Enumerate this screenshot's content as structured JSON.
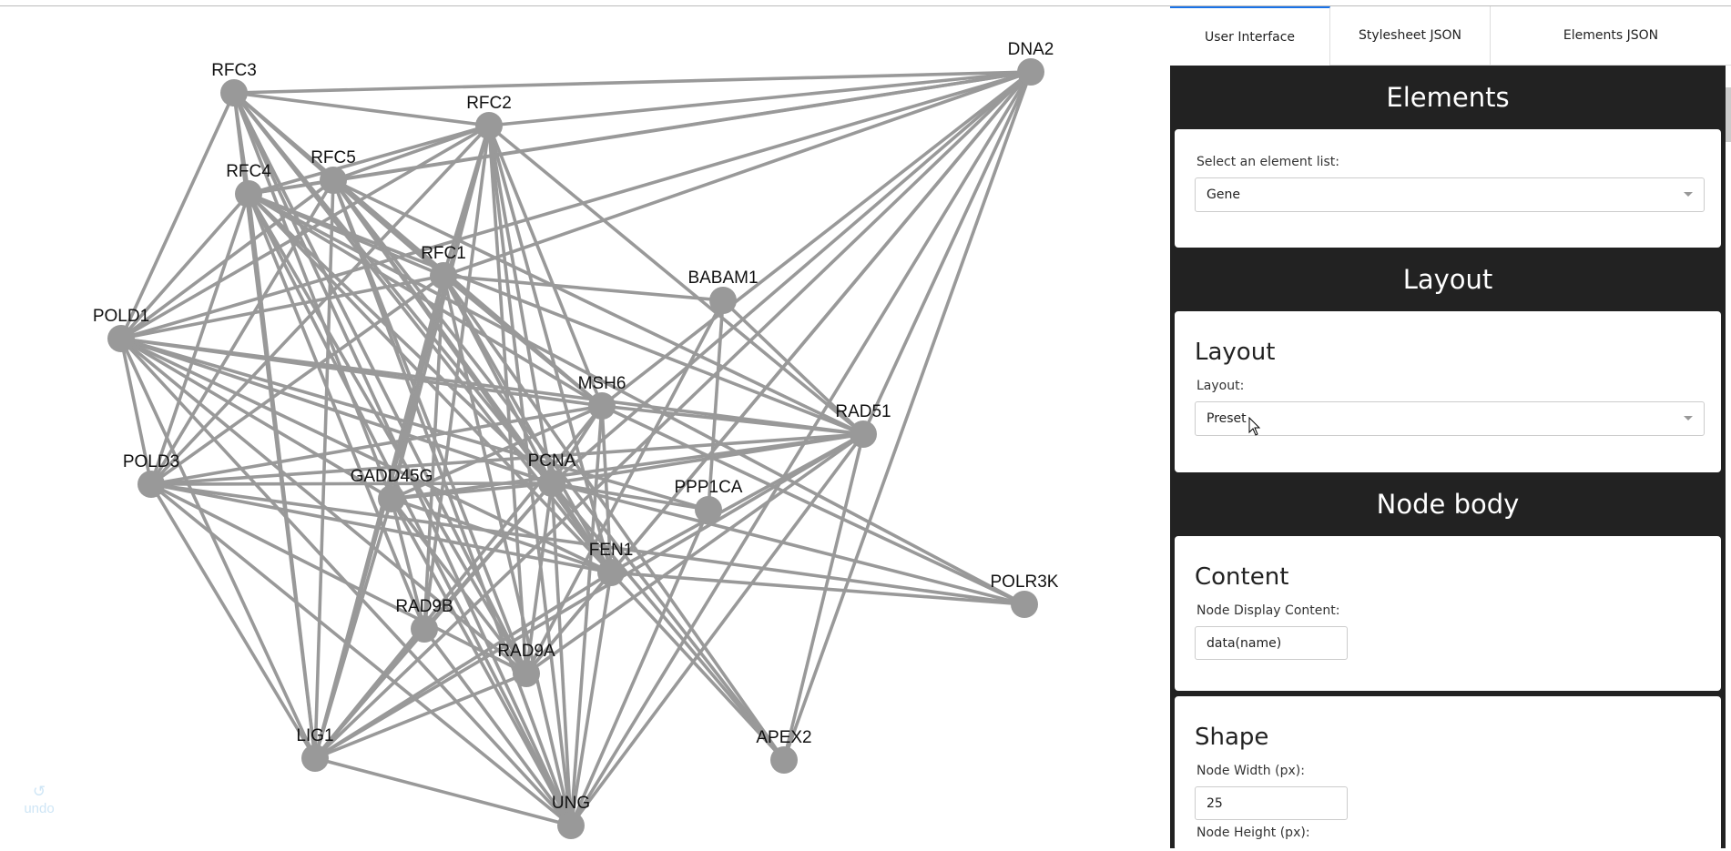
{
  "graph": {
    "node_color": "#999999",
    "edge_color": "#999999",
    "nodes": [
      "RFC3",
      "DNA2",
      "RFC2",
      "RFC5",
      "RFC4",
      "RFC1",
      "BABAM1",
      "POLD1",
      "MSH6",
      "RAD51",
      "POLD3",
      "GADD45G",
      "PCNA",
      "PPP1CA",
      "FEN1",
      "POLR3K",
      "RAD9B",
      "RAD9A",
      "LIG1",
      "APEX2",
      "UNG"
    ],
    "edges": [
      [
        "RFC3",
        "DNA2"
      ],
      [
        "RFC3",
        "RFC2"
      ],
      [
        "RFC3",
        "RFC4"
      ],
      [
        "RFC3",
        "RFC5"
      ],
      [
        "RFC3",
        "RFC1"
      ],
      [
        "RFC3",
        "POLD1"
      ],
      [
        "RFC3",
        "PCNA"
      ],
      [
        "RFC3",
        "FEN1"
      ],
      [
        "RFC3",
        "LIG1"
      ],
      [
        "RFC3",
        "MSH6"
      ],
      [
        "RFC3",
        "RAD9A"
      ],
      [
        "RFC3",
        "UNG"
      ],
      [
        "RFC3",
        "GADD45G"
      ],
      [
        "DNA2",
        "RFC2"
      ],
      [
        "DNA2",
        "RFC5"
      ],
      [
        "DNA2",
        "RFC4"
      ],
      [
        "DNA2",
        "RFC1"
      ],
      [
        "DNA2",
        "MSH6"
      ],
      [
        "DNA2",
        "PCNA"
      ],
      [
        "DNA2",
        "FEN1"
      ],
      [
        "DNA2",
        "RAD9A"
      ],
      [
        "DNA2",
        "LIG1"
      ],
      [
        "DNA2",
        "UNG"
      ],
      [
        "DNA2",
        "APEX2"
      ],
      [
        "DNA2",
        "RAD51"
      ],
      [
        "DNA2",
        "POLD1"
      ],
      [
        "RFC2",
        "RFC4"
      ],
      [
        "RFC2",
        "RFC5"
      ],
      [
        "RFC2",
        "RFC1"
      ],
      [
        "RFC2",
        "POLD1"
      ],
      [
        "RFC2",
        "POLD3"
      ],
      [
        "RFC2",
        "PCNA"
      ],
      [
        "RFC2",
        "FEN1"
      ],
      [
        "RFC2",
        "RAD51"
      ],
      [
        "RFC2",
        "LIG1"
      ],
      [
        "RFC2",
        "UNG"
      ],
      [
        "RFC2",
        "RAD9A"
      ],
      [
        "RFC2",
        "GADD45G"
      ],
      [
        "RFC2",
        "MSH6"
      ],
      [
        "RFC2",
        "RAD9B"
      ],
      [
        "RFC5",
        "RFC4"
      ],
      [
        "RFC5",
        "RFC1"
      ],
      [
        "RFC5",
        "POLD1"
      ],
      [
        "RFC5",
        "POLD3"
      ],
      [
        "RFC5",
        "PCNA"
      ],
      [
        "RFC5",
        "FEN1"
      ],
      [
        "RFC5",
        "LIG1"
      ],
      [
        "RFC5",
        "UNG"
      ],
      [
        "RFC5",
        "MSH6"
      ],
      [
        "RFC5",
        "RAD9A"
      ],
      [
        "RFC5",
        "RAD51"
      ],
      [
        "RFC5",
        "APEX2"
      ],
      [
        "RFC4",
        "RFC1"
      ],
      [
        "RFC4",
        "POLD1"
      ],
      [
        "RFC4",
        "POLD3"
      ],
      [
        "RFC4",
        "PCNA"
      ],
      [
        "RFC4",
        "FEN1"
      ],
      [
        "RFC4",
        "LIG1"
      ],
      [
        "RFC4",
        "UNG"
      ],
      [
        "RFC4",
        "MSH6"
      ],
      [
        "RFC4",
        "RAD9B"
      ],
      [
        "RFC4",
        "RAD9A"
      ],
      [
        "RFC4",
        "RAD51"
      ],
      [
        "RFC4",
        "POLR3K"
      ],
      [
        "RFC1",
        "POLD1"
      ],
      [
        "RFC1",
        "POLD3"
      ],
      [
        "RFC1",
        "PCNA"
      ],
      [
        "RFC1",
        "FEN1"
      ],
      [
        "RFC1",
        "LIG1"
      ],
      [
        "RFC1",
        "UNG"
      ],
      [
        "RFC1",
        "MSH6"
      ],
      [
        "RFC1",
        "BABAM1"
      ],
      [
        "RFC1",
        "GADD45G"
      ],
      [
        "RFC1",
        "RAD9B"
      ],
      [
        "RFC1",
        "APEX2"
      ],
      [
        "POLD1",
        "POLD3"
      ],
      [
        "POLD1",
        "PCNA"
      ],
      [
        "POLD1",
        "FEN1"
      ],
      [
        "POLD1",
        "LIG1"
      ],
      [
        "POLD1",
        "MSH6"
      ],
      [
        "POLD1",
        "RAD51"
      ],
      [
        "POLD1",
        "GADD45G"
      ],
      [
        "POLD1",
        "RAD9A"
      ],
      [
        "POLD1",
        "UNG"
      ],
      [
        "POLD1",
        "PPP1CA"
      ],
      [
        "POLD3",
        "PCNA"
      ],
      [
        "POLD3",
        "FEN1"
      ],
      [
        "POLD3",
        "LIG1"
      ],
      [
        "POLD3",
        "MSH6"
      ],
      [
        "POLD3",
        "RAD9A"
      ],
      [
        "POLD3",
        "UNG"
      ],
      [
        "POLD3",
        "RAD51"
      ],
      [
        "POLD3",
        "POLR3K"
      ],
      [
        "PCNA",
        "FEN1"
      ],
      [
        "PCNA",
        "LIG1"
      ],
      [
        "PCNA",
        "UNG"
      ],
      [
        "PCNA",
        "MSH6"
      ],
      [
        "PCNA",
        "RAD51"
      ],
      [
        "PCNA",
        "GADD45G"
      ],
      [
        "PCNA",
        "RAD9A"
      ],
      [
        "PCNA",
        "RAD9B"
      ],
      [
        "PCNA",
        "PPP1CA"
      ],
      [
        "PCNA",
        "APEX2"
      ],
      [
        "PCNA",
        "POLR3K"
      ],
      [
        "FEN1",
        "LIG1"
      ],
      [
        "FEN1",
        "UNG"
      ],
      [
        "FEN1",
        "MSH6"
      ],
      [
        "FEN1",
        "RAD51"
      ],
      [
        "FEN1",
        "GADD45G"
      ],
      [
        "FEN1",
        "POLR3K"
      ],
      [
        "FEN1",
        "RAD9A"
      ],
      [
        "FEN1",
        "APEX2"
      ],
      [
        "MSH6",
        "RAD51"
      ],
      [
        "MSH6",
        "LIG1"
      ],
      [
        "MSH6",
        "UNG"
      ],
      [
        "MSH6",
        "GADD45G"
      ],
      [
        "MSH6",
        "POLR3K"
      ],
      [
        "BABAM1",
        "PPP1CA"
      ],
      [
        "BABAM1",
        "RAD9A"
      ],
      [
        "BABAM1",
        "RAD51"
      ],
      [
        "RAD51",
        "LIG1"
      ],
      [
        "RAD51",
        "UNG"
      ],
      [
        "RAD51",
        "APEX2"
      ],
      [
        "RAD51",
        "RAD9A"
      ],
      [
        "RAD51",
        "GADD45G"
      ],
      [
        "GADD45G",
        "RAD9A"
      ],
      [
        "GADD45G",
        "RAD9B"
      ],
      [
        "GADD45G",
        "LIG1"
      ],
      [
        "GADD45G",
        "UNG"
      ],
      [
        "RAD9B",
        "LIG1"
      ],
      [
        "RAD9B",
        "UNG"
      ],
      [
        "RAD9A",
        "LIG1"
      ],
      [
        "LIG1",
        "UNG"
      ],
      [
        "PPP1CA",
        "UNG"
      ]
    ]
  },
  "undo": {
    "icon": "undo-arrow-icon",
    "label": "undo"
  },
  "tabs": [
    {
      "label": "User Interface",
      "active": true
    },
    {
      "label": "Stylesheet JSON",
      "active": false
    },
    {
      "label": "Elements JSON",
      "active": false
    }
  ],
  "panel": {
    "elements": {
      "header": "Elements",
      "label": "Select an element list:",
      "value": "Gene"
    },
    "layout": {
      "header": "Layout",
      "title": "Layout",
      "label": "Layout:",
      "value": "Preset"
    },
    "node_body": {
      "header": "Node body",
      "content": {
        "title": "Content",
        "label": "Node Display Content:",
        "value": "data(name)"
      },
      "shape": {
        "title": "Shape",
        "label": "Node Width (px):",
        "value": "25",
        "next_label": "Node Height (px):"
      }
    }
  },
  "colors": {
    "accent": "#1a73e8",
    "panel_bg": "#222222"
  }
}
